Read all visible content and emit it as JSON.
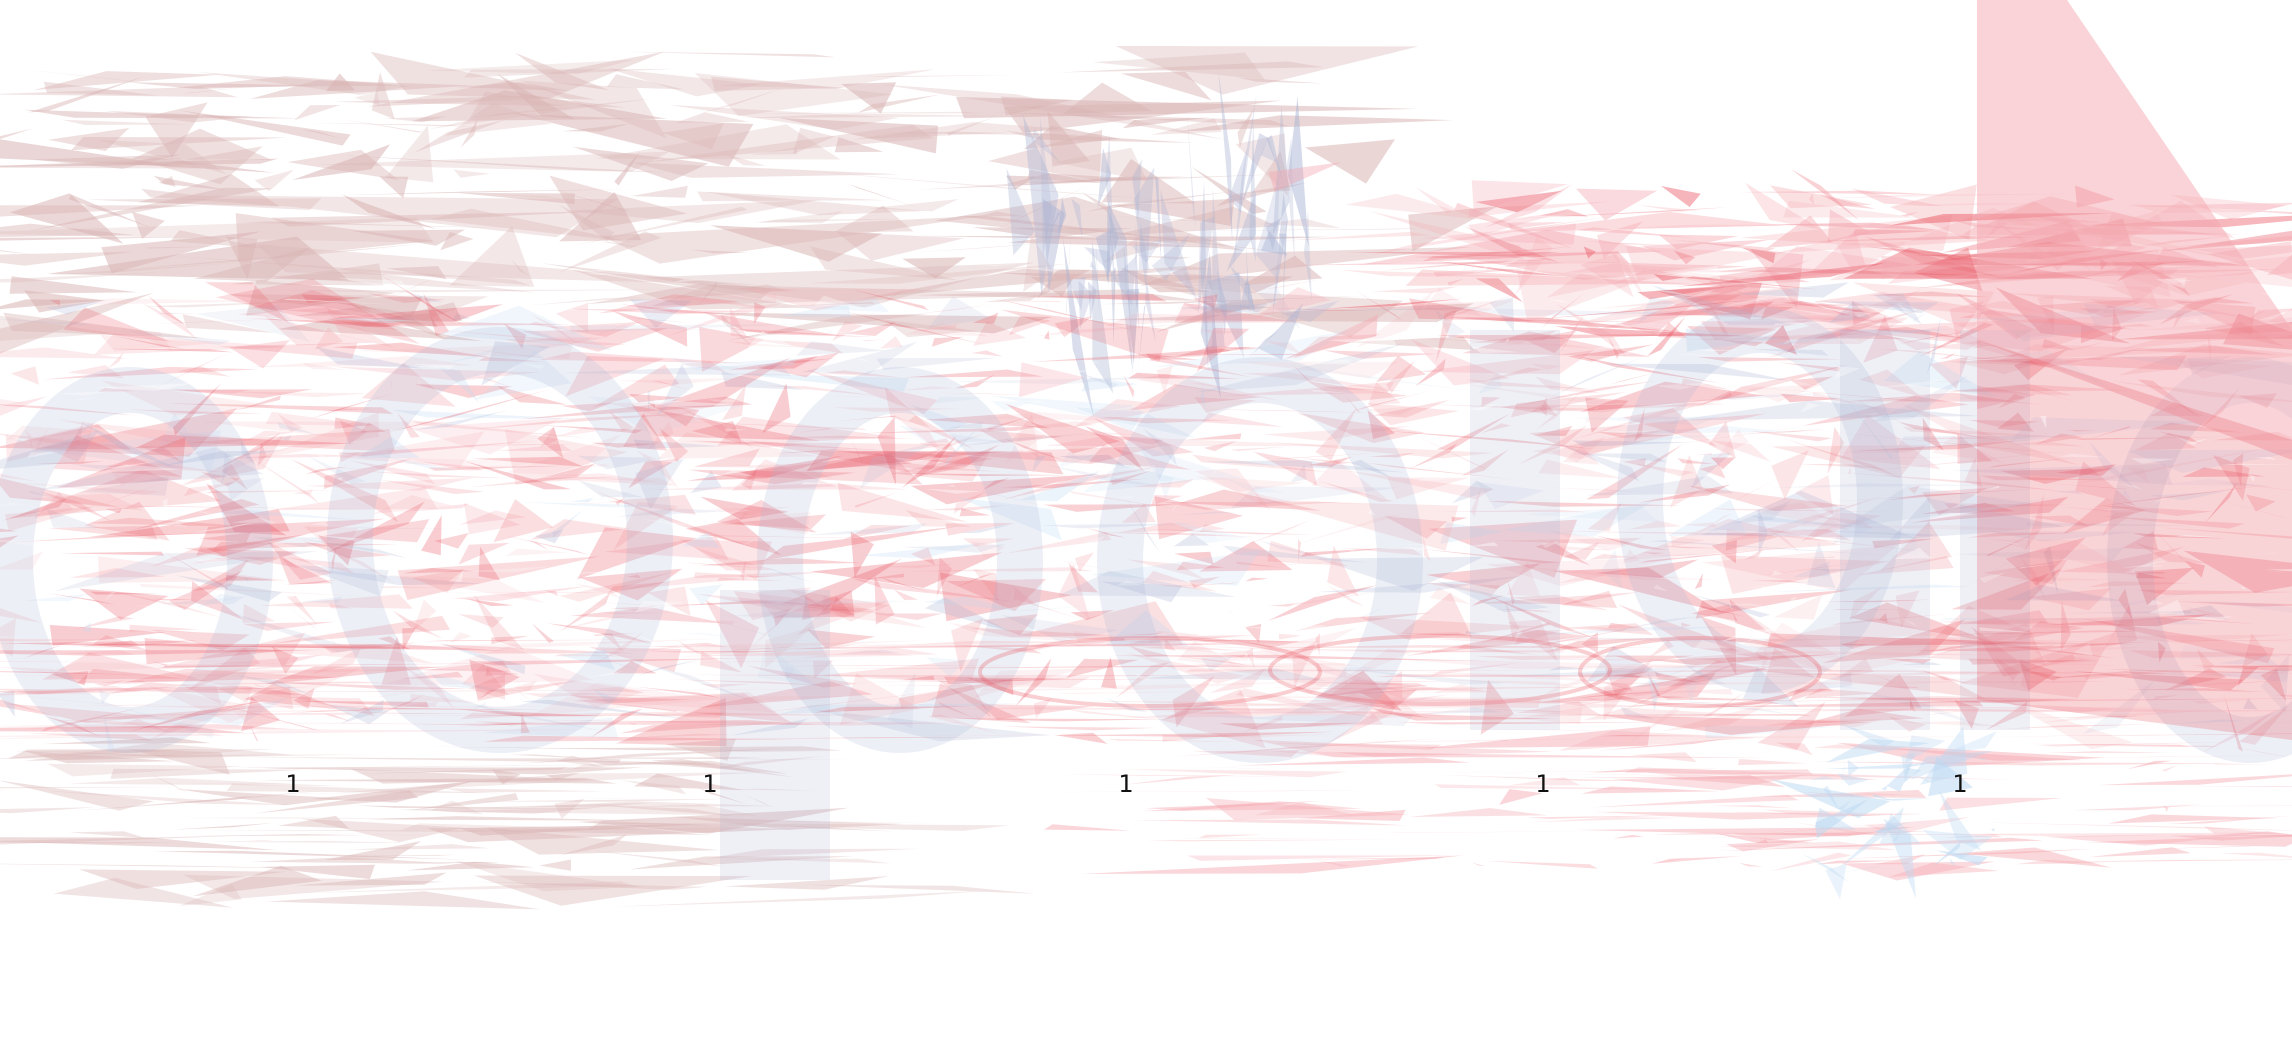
{
  "palette": {
    "background": "#ffffff",
    "dusty_rose": "#d9b3b3",
    "coral_red": "#e8525f",
    "soft_pink": "#f4a8b0",
    "light_blue": "#bcd8f2",
    "lavender_blue": "#aab4d4"
  },
  "labels": {
    "items": [
      "1",
      "1",
      "1",
      "1",
      "1"
    ]
  }
}
